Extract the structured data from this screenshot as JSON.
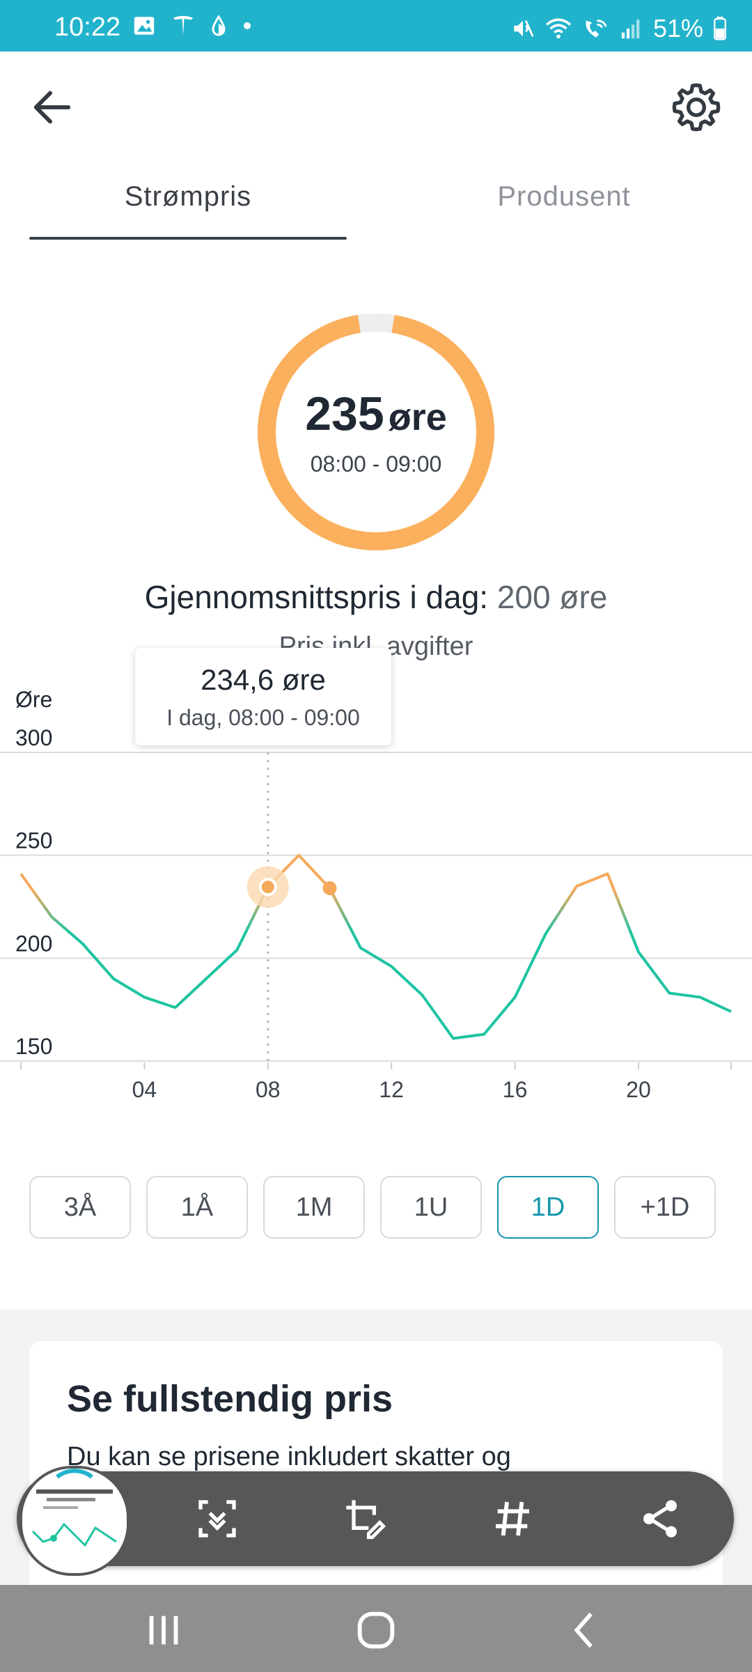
{
  "status_bar": {
    "time": "10:22",
    "battery": "51%",
    "left_icons": [
      "image-icon",
      "tesla-icon",
      "drop-icon",
      "dot-icon"
    ],
    "right_icons": [
      "mute-icon",
      "wifi-icon",
      "wifi-call-icon",
      "signal-icon",
      "battery-icon"
    ]
  },
  "tabs": [
    {
      "label": "Strømpris",
      "active": true
    },
    {
      "label": "Produsent",
      "active": false
    }
  ],
  "gauge": {
    "value": "235",
    "unit": "øre",
    "time_range": "08:00 - 09:00",
    "fill_fraction": 0.95,
    "color": "#fbb05d"
  },
  "average": {
    "label": "Gjennomsnittspris i dag:",
    "value": "200 øre",
    "subtitle": "Pris inkl. avgifter"
  },
  "tooltip": {
    "value": "234,6 øre",
    "time": "I dag, 08:00 - 09:00"
  },
  "chart_data": {
    "type": "line",
    "ylabel": "Øre",
    "ylim": [
      150,
      300
    ],
    "y_ticks": [
      "300",
      "250",
      "200",
      "150"
    ],
    "x_ticks": [
      "04",
      "08",
      "12",
      "16",
      "20"
    ],
    "x": [
      0,
      1,
      2,
      3,
      4,
      5,
      6,
      7,
      8,
      9,
      10,
      11,
      12,
      13,
      14,
      15,
      16,
      17,
      18,
      19,
      20,
      21,
      22,
      23
    ],
    "values": [
      241,
      220,
      207,
      190,
      181,
      176,
      190,
      204,
      234.6,
      250,
      234,
      205,
      196,
      182,
      161,
      163,
      181,
      212,
      235,
      241,
      203,
      183,
      181,
      174
    ],
    "highlight_index": 8,
    "marker_index": 10,
    "grid": true,
    "colors": {
      "high": "#f4a95a",
      "low": "#1dc4a0"
    }
  },
  "ranges": [
    {
      "label": "3Å",
      "active": false
    },
    {
      "label": "1Å",
      "active": false
    },
    {
      "label": "1M",
      "active": false
    },
    {
      "label": "1U",
      "active": false
    },
    {
      "label": "1D",
      "active": true
    },
    {
      "label": "+1D",
      "active": false
    }
  ],
  "card": {
    "title": "Se fullstendig pris",
    "text": "Du kan se prisene inkludert skatter og"
  },
  "screenshot_toolbar": {
    "icons": [
      "scroll-capture-icon",
      "crop-edit-icon",
      "hashtag-icon",
      "share-icon"
    ]
  },
  "nav": {
    "icons": [
      "recents-icon",
      "home-icon",
      "back-icon"
    ]
  }
}
